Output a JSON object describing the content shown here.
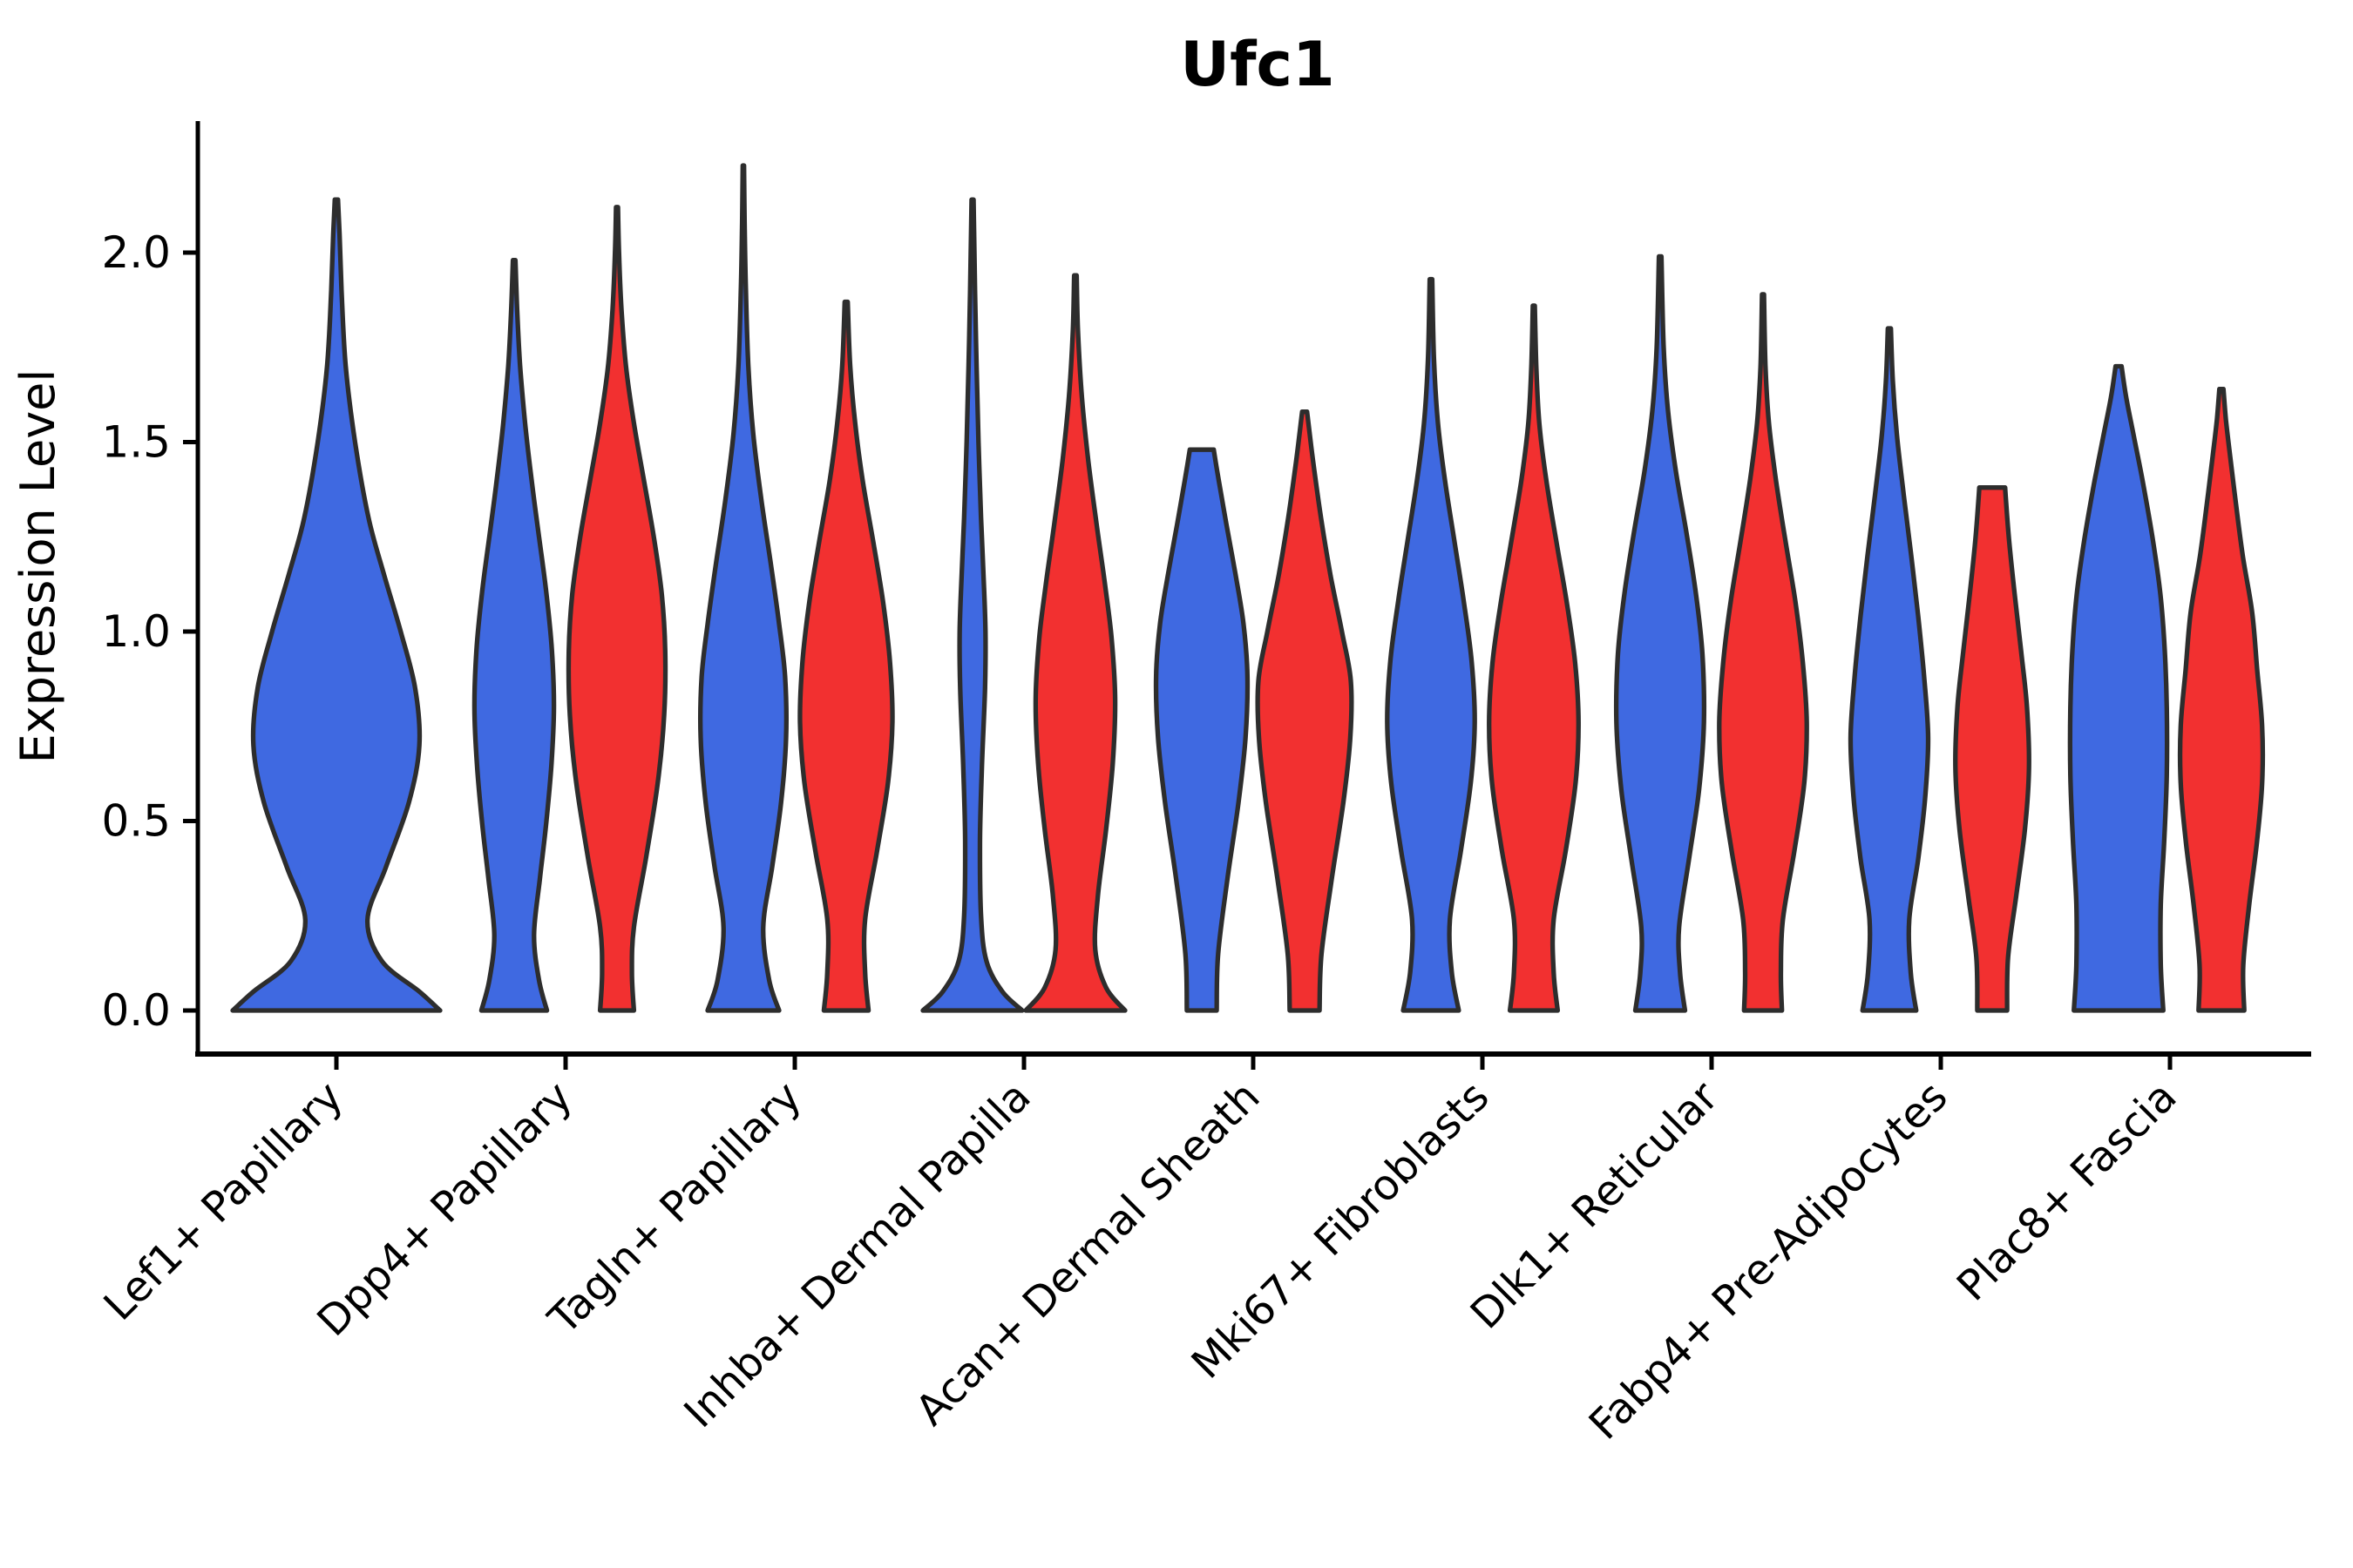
{
  "chart_data": {
    "type": "violin",
    "title": "Ufc1",
    "ylabel": "Expression Level",
    "xlabel": "",
    "yticks": [
      0.0,
      0.5,
      1.0,
      1.5,
      2.0
    ],
    "ylim": [
      0,
      2.35
    ],
    "grid": false,
    "legend": "none",
    "categories": [
      "Lef1+ Papillary",
      "Dpp4+ Papillary",
      "Tagln+ Papillary",
      "Inhba+ Dermal Papilla",
      "Acan+ Dermal Sheath",
      "Mki67+ Fibroblasts",
      "Dlk1+ Reticular",
      "Fabp4+ Pre-Adipocytes",
      "Plac8+ Fascia"
    ],
    "colors": {
      "blue": "#3F69E1",
      "red": "#F23030",
      "outline": "#2D2D2D"
    },
    "violins": [
      {
        "cat": 0,
        "pos": "single",
        "color": "blue",
        "peak": 2.14,
        "flat_top": false,
        "profile": [
          [
            0,
            1.0
          ],
          [
            0.05,
            0.8
          ],
          [
            0.13,
            0.44
          ],
          [
            0.24,
            0.3
          ],
          [
            0.38,
            0.48
          ],
          [
            0.55,
            0.7
          ],
          [
            0.7,
            0.8
          ],
          [
            0.85,
            0.76
          ],
          [
            1.0,
            0.62
          ],
          [
            1.15,
            0.46
          ],
          [
            1.3,
            0.31
          ],
          [
            1.5,
            0.18
          ],
          [
            1.7,
            0.09
          ],
          [
            1.9,
            0.05
          ],
          [
            2.05,
            0.03
          ],
          [
            2.14,
            0.015
          ]
        ]
      },
      {
        "cat": 1,
        "pos": "left",
        "color": "blue",
        "peak": 1.98,
        "flat_top": false,
        "profile": [
          [
            0,
            0.66
          ],
          [
            0.08,
            0.5
          ],
          [
            0.2,
            0.4
          ],
          [
            0.35,
            0.52
          ],
          [
            0.5,
            0.65
          ],
          [
            0.65,
            0.75
          ],
          [
            0.8,
            0.8
          ],
          [
            0.95,
            0.76
          ],
          [
            1.1,
            0.65
          ],
          [
            1.25,
            0.5
          ],
          [
            1.4,
            0.35
          ],
          [
            1.55,
            0.22
          ],
          [
            1.7,
            0.12
          ],
          [
            1.85,
            0.06
          ],
          [
            1.98,
            0.025
          ]
        ]
      },
      {
        "cat": 1,
        "pos": "right",
        "color": "red",
        "peak": 2.12,
        "flat_top": false,
        "profile": [
          [
            0,
            0.34
          ],
          [
            0.1,
            0.3
          ],
          [
            0.22,
            0.34
          ],
          [
            0.4,
            0.58
          ],
          [
            0.6,
            0.82
          ],
          [
            0.78,
            0.95
          ],
          [
            0.95,
            0.97
          ],
          [
            1.1,
            0.9
          ],
          [
            1.25,
            0.74
          ],
          [
            1.4,
            0.54
          ],
          [
            1.55,
            0.34
          ],
          [
            1.7,
            0.18
          ],
          [
            1.85,
            0.09
          ],
          [
            2.0,
            0.04
          ],
          [
            2.12,
            0.02
          ]
        ]
      },
      {
        "cat": 2,
        "pos": "left",
        "color": "blue",
        "peak": 2.23,
        "flat_top": false,
        "profile": [
          [
            0,
            0.72
          ],
          [
            0.08,
            0.52
          ],
          [
            0.22,
            0.4
          ],
          [
            0.38,
            0.58
          ],
          [
            0.55,
            0.76
          ],
          [
            0.72,
            0.86
          ],
          [
            0.88,
            0.84
          ],
          [
            1.02,
            0.72
          ],
          [
            1.18,
            0.55
          ],
          [
            1.35,
            0.36
          ],
          [
            1.52,
            0.2
          ],
          [
            1.7,
            0.1
          ],
          [
            1.9,
            0.05
          ],
          [
            2.08,
            0.025
          ],
          [
            2.23,
            0.012
          ]
        ]
      },
      {
        "cat": 2,
        "pos": "right",
        "color": "red",
        "peak": 1.87,
        "flat_top": false,
        "profile": [
          [
            0,
            0.45
          ],
          [
            0.1,
            0.38
          ],
          [
            0.24,
            0.38
          ],
          [
            0.42,
            0.62
          ],
          [
            0.6,
            0.84
          ],
          [
            0.76,
            0.93
          ],
          [
            0.92,
            0.88
          ],
          [
            1.08,
            0.74
          ],
          [
            1.24,
            0.54
          ],
          [
            1.4,
            0.33
          ],
          [
            1.55,
            0.18
          ],
          [
            1.7,
            0.08
          ],
          [
            1.87,
            0.03
          ]
        ]
      },
      {
        "cat": 3,
        "pos": "left",
        "color": "blue",
        "peak": 2.14,
        "flat_top": false,
        "profile": [
          [
            0,
            1.0
          ],
          [
            0.05,
            0.6
          ],
          [
            0.13,
            0.28
          ],
          [
            0.25,
            0.17
          ],
          [
            0.45,
            0.15
          ],
          [
            0.65,
            0.19
          ],
          [
            0.85,
            0.25
          ],
          [
            1.0,
            0.26
          ],
          [
            1.15,
            0.22
          ],
          [
            1.3,
            0.17
          ],
          [
            1.5,
            0.12
          ],
          [
            1.7,
            0.08
          ],
          [
            1.9,
            0.05
          ],
          [
            2.14,
            0.02
          ]
        ]
      },
      {
        "cat": 3,
        "pos": "right",
        "color": "red",
        "peak": 1.94,
        "flat_top": false,
        "profile": [
          [
            0,
            1.0
          ],
          [
            0.06,
            0.62
          ],
          [
            0.16,
            0.4
          ],
          [
            0.3,
            0.45
          ],
          [
            0.48,
            0.62
          ],
          [
            0.65,
            0.75
          ],
          [
            0.82,
            0.8
          ],
          [
            0.98,
            0.73
          ],
          [
            1.12,
            0.6
          ],
          [
            1.28,
            0.43
          ],
          [
            1.45,
            0.26
          ],
          [
            1.62,
            0.13
          ],
          [
            1.8,
            0.05
          ],
          [
            1.94,
            0.025
          ]
        ]
      },
      {
        "cat": 4,
        "pos": "left",
        "color": "blue",
        "peak": 1.48,
        "flat_top": true,
        "profile": [
          [
            0,
            0.3
          ],
          [
            0.15,
            0.33
          ],
          [
            0.35,
            0.52
          ],
          [
            0.55,
            0.74
          ],
          [
            0.72,
            0.88
          ],
          [
            0.88,
            0.92
          ],
          [
            1.02,
            0.84
          ],
          [
            1.15,
            0.68
          ],
          [
            1.28,
            0.5
          ],
          [
            1.4,
            0.34
          ],
          [
            1.48,
            0.24
          ]
        ]
      },
      {
        "cat": 4,
        "pos": "right",
        "color": "red",
        "peak": 1.58,
        "flat_top": false,
        "profile": [
          [
            0,
            0.3
          ],
          [
            0.15,
            0.34
          ],
          [
            0.35,
            0.55
          ],
          [
            0.55,
            0.78
          ],
          [
            0.72,
            0.92
          ],
          [
            0.87,
            0.93
          ],
          [
            1.0,
            0.75
          ],
          [
            1.15,
            0.52
          ],
          [
            1.3,
            0.33
          ],
          [
            1.45,
            0.17
          ],
          [
            1.58,
            0.05
          ]
        ]
      },
      {
        "cat": 5,
        "pos": "left",
        "color": "blue",
        "peak": 1.93,
        "flat_top": false,
        "profile": [
          [
            0,
            0.56
          ],
          [
            0.1,
            0.42
          ],
          [
            0.24,
            0.38
          ],
          [
            0.42,
            0.6
          ],
          [
            0.6,
            0.8
          ],
          [
            0.76,
            0.88
          ],
          [
            0.92,
            0.82
          ],
          [
            1.08,
            0.66
          ],
          [
            1.24,
            0.47
          ],
          [
            1.4,
            0.28
          ],
          [
            1.55,
            0.14
          ],
          [
            1.72,
            0.06
          ],
          [
            1.93,
            0.025
          ]
        ]
      },
      {
        "cat": 5,
        "pos": "right",
        "color": "red",
        "peak": 1.86,
        "flat_top": false,
        "profile": [
          [
            0,
            0.48
          ],
          [
            0.1,
            0.4
          ],
          [
            0.24,
            0.4
          ],
          [
            0.42,
            0.64
          ],
          [
            0.6,
            0.84
          ],
          [
            0.76,
            0.9
          ],
          [
            0.92,
            0.83
          ],
          [
            1.08,
            0.66
          ],
          [
            1.24,
            0.45
          ],
          [
            1.4,
            0.25
          ],
          [
            1.55,
            0.11
          ],
          [
            1.7,
            0.05
          ],
          [
            1.86,
            0.02
          ]
        ]
      },
      {
        "cat": 6,
        "pos": "left",
        "color": "blue",
        "peak": 1.99,
        "flat_top": false,
        "profile": [
          [
            0,
            0.5
          ],
          [
            0.1,
            0.4
          ],
          [
            0.22,
            0.38
          ],
          [
            0.4,
            0.58
          ],
          [
            0.58,
            0.78
          ],
          [
            0.76,
            0.88
          ],
          [
            0.94,
            0.85
          ],
          [
            1.1,
            0.72
          ],
          [
            1.26,
            0.53
          ],
          [
            1.42,
            0.32
          ],
          [
            1.58,
            0.16
          ],
          [
            1.75,
            0.07
          ],
          [
            1.99,
            0.025
          ]
        ]
      },
      {
        "cat": 6,
        "pos": "right",
        "color": "red",
        "peak": 1.89,
        "flat_top": false,
        "profile": [
          [
            0,
            0.38
          ],
          [
            0.1,
            0.36
          ],
          [
            0.24,
            0.4
          ],
          [
            0.42,
            0.63
          ],
          [
            0.6,
            0.83
          ],
          [
            0.76,
            0.88
          ],
          [
            0.92,
            0.8
          ],
          [
            1.08,
            0.65
          ],
          [
            1.24,
            0.45
          ],
          [
            1.4,
            0.26
          ],
          [
            1.55,
            0.12
          ],
          [
            1.7,
            0.05
          ],
          [
            1.89,
            0.02
          ]
        ]
      },
      {
        "cat": 7,
        "pos": "left",
        "color": "blue",
        "peak": 1.8,
        "flat_top": false,
        "profile": [
          [
            0,
            0.54
          ],
          [
            0.1,
            0.43
          ],
          [
            0.24,
            0.4
          ],
          [
            0.4,
            0.58
          ],
          [
            0.56,
            0.72
          ],
          [
            0.72,
            0.78
          ],
          [
            0.88,
            0.7
          ],
          [
            1.04,
            0.58
          ],
          [
            1.2,
            0.44
          ],
          [
            1.36,
            0.29
          ],
          [
            1.52,
            0.15
          ],
          [
            1.66,
            0.07
          ],
          [
            1.8,
            0.03
          ]
        ]
      },
      {
        "cat": 7,
        "pos": "right",
        "color": "red",
        "peak": 1.38,
        "flat_top": true,
        "profile": [
          [
            0,
            0.3
          ],
          [
            0.14,
            0.32
          ],
          [
            0.3,
            0.48
          ],
          [
            0.48,
            0.66
          ],
          [
            0.64,
            0.74
          ],
          [
            0.8,
            0.7
          ],
          [
            0.95,
            0.58
          ],
          [
            1.1,
            0.45
          ],
          [
            1.24,
            0.34
          ],
          [
            1.34,
            0.28
          ],
          [
            1.38,
            0.26
          ]
        ]
      },
      {
        "cat": 8,
        "pos": "left",
        "color": "blue",
        "peak": 1.7,
        "flat_top": true,
        "profile": [
          [
            0,
            0.9
          ],
          [
            0.12,
            0.85
          ],
          [
            0.28,
            0.85
          ],
          [
            0.45,
            0.92
          ],
          [
            0.62,
            0.97
          ],
          [
            0.8,
            0.97
          ],
          [
            0.95,
            0.93
          ],
          [
            1.1,
            0.84
          ],
          [
            1.25,
            0.68
          ],
          [
            1.4,
            0.48
          ],
          [
            1.52,
            0.3
          ],
          [
            1.62,
            0.15
          ],
          [
            1.7,
            0.06
          ]
        ]
      },
      {
        "cat": 8,
        "pos": "right",
        "color": "red",
        "peak": 1.64,
        "flat_top": false,
        "profile": [
          [
            0,
            0.46
          ],
          [
            0.12,
            0.44
          ],
          [
            0.28,
            0.56
          ],
          [
            0.45,
            0.72
          ],
          [
            0.6,
            0.82
          ],
          [
            0.75,
            0.82
          ],
          [
            0.9,
            0.72
          ],
          [
            1.05,
            0.62
          ],
          [
            1.2,
            0.43
          ],
          [
            1.35,
            0.28
          ],
          [
            1.48,
            0.16
          ],
          [
            1.56,
            0.09
          ],
          [
            1.64,
            0.04
          ]
        ]
      }
    ]
  }
}
